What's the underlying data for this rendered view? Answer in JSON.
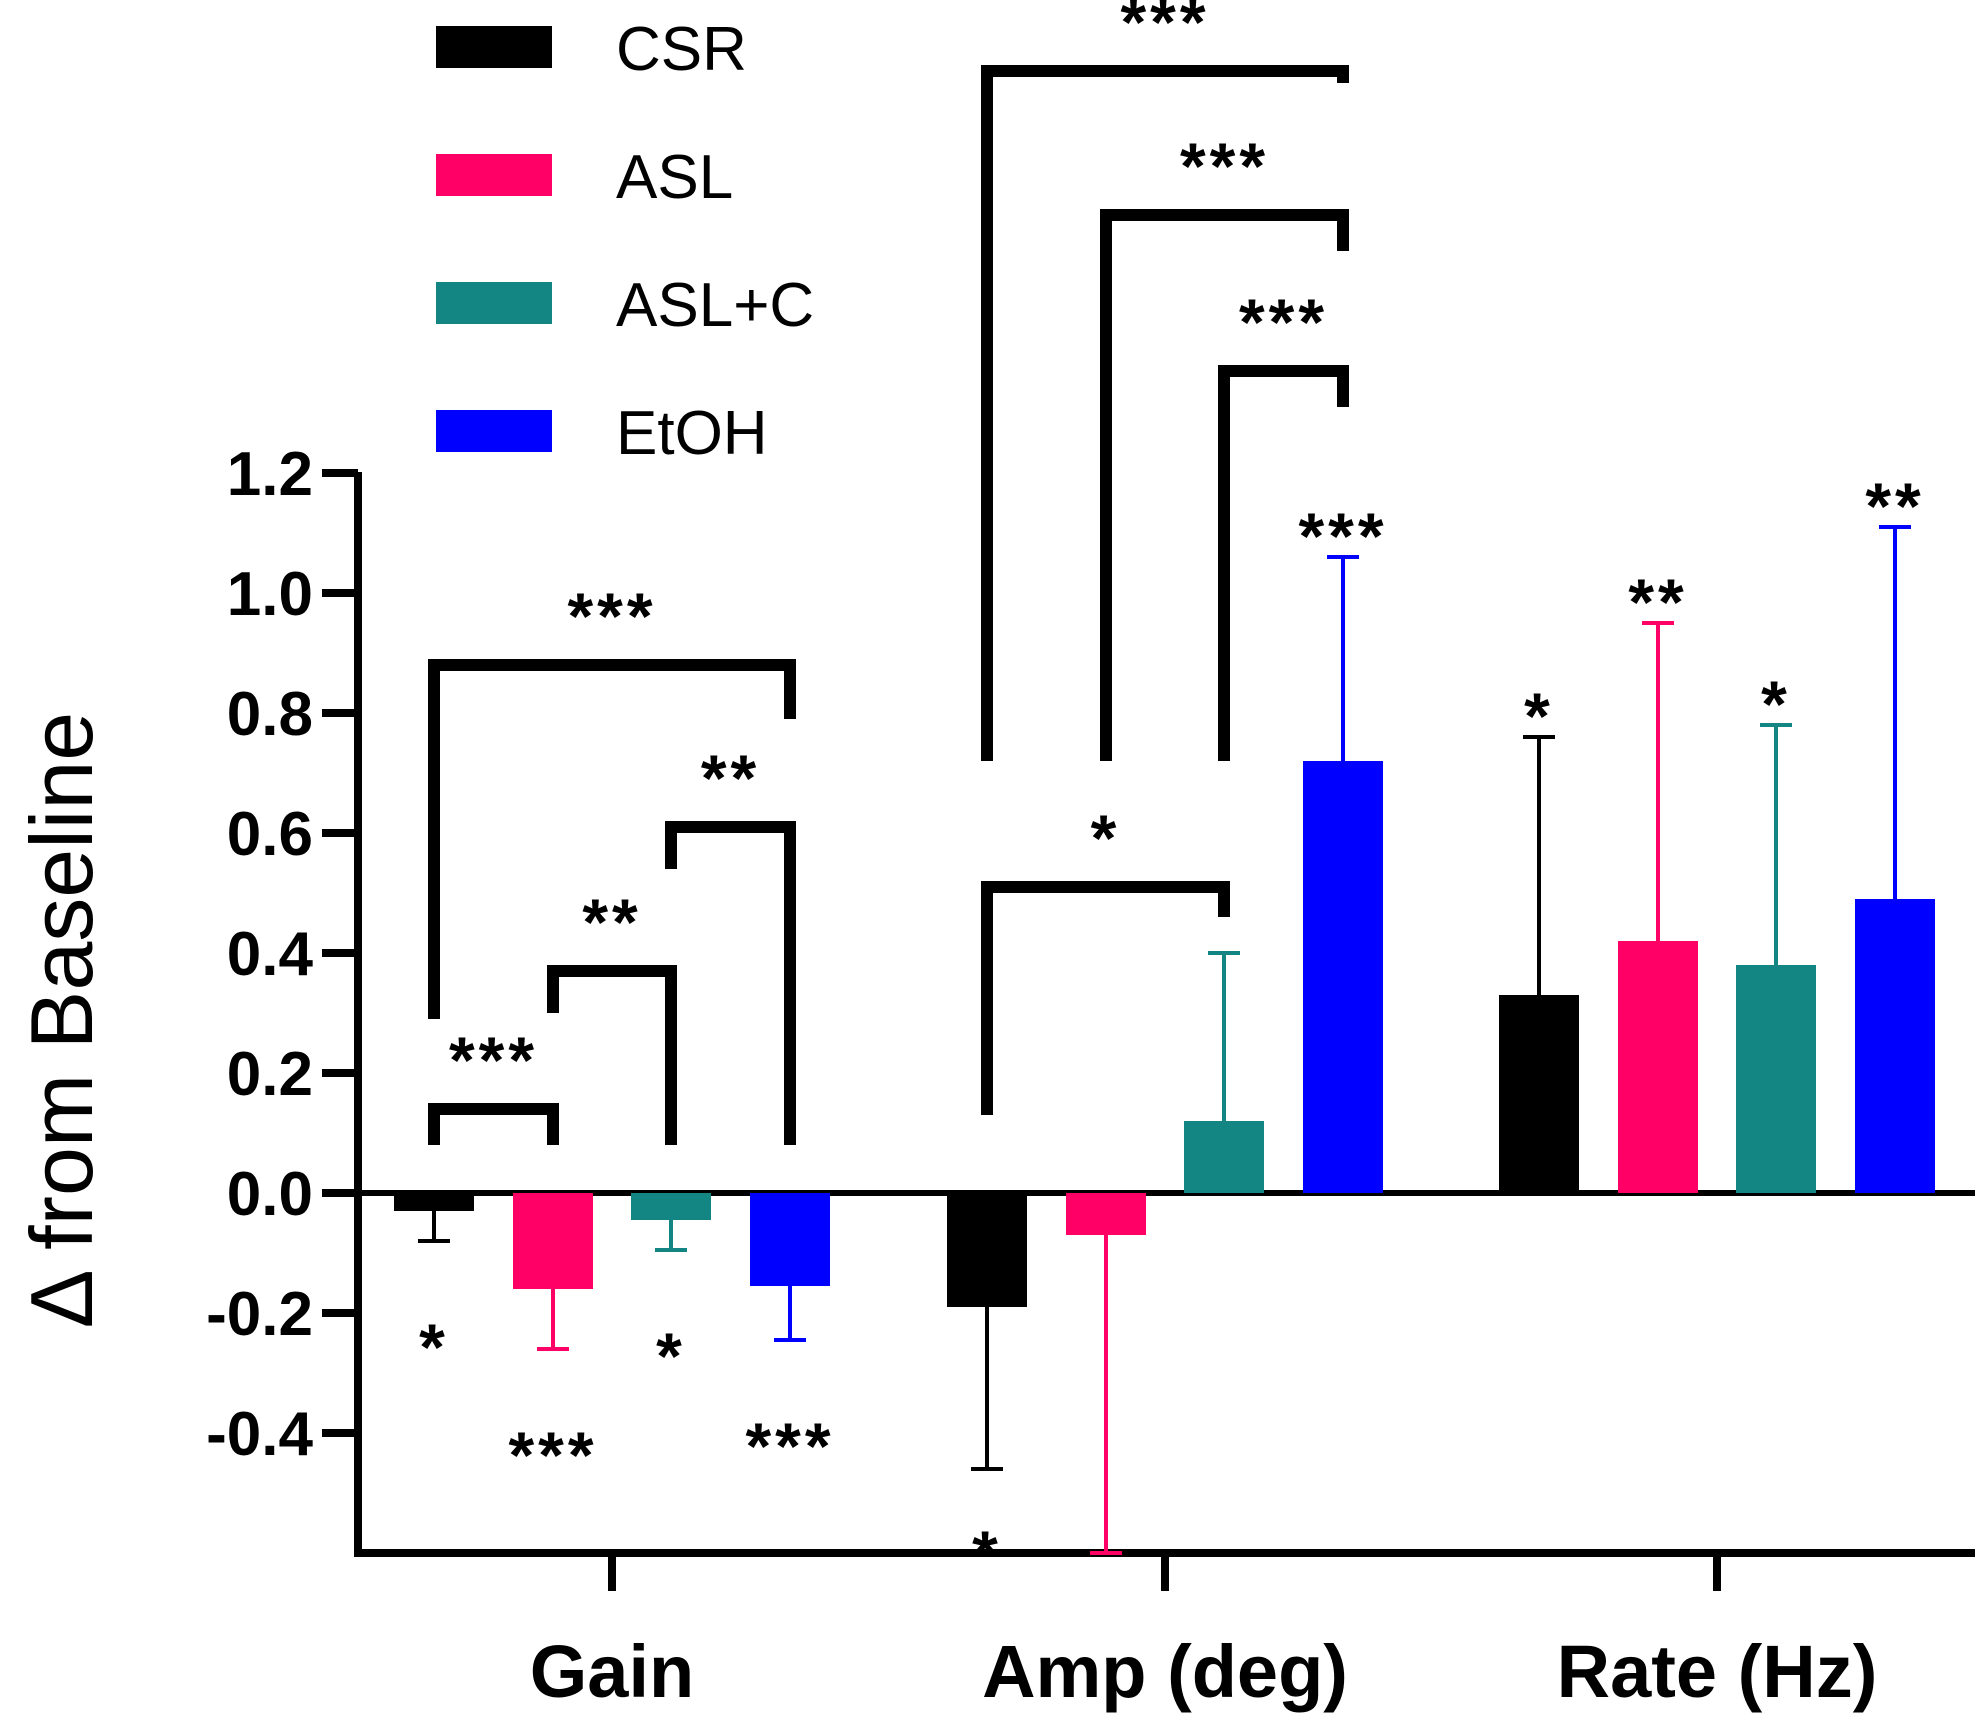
{
  "chart_data": {
    "type": "bar",
    "title": "",
    "ylabel": "Δ from Baseline",
    "xlabel": "",
    "ylim": [
      -0.6,
      1.2
    ],
    "yticks": [
      -0.4,
      -0.2,
      0.0,
      0.2,
      0.4,
      0.6,
      0.8,
      1.0,
      1.2
    ],
    "ytick_labels": [
      "-0.4",
      "-0.2",
      "0.0",
      "0.2",
      "0.4",
      "0.6",
      "0.8",
      "1.0",
      "1.2"
    ],
    "categories": [
      "Gain",
      "Amp (deg)",
      "Rate (Hz)"
    ],
    "legend_position": "top-left",
    "series": [
      {
        "name": "CSR",
        "color": "#000000",
        "values": [
          -0.03,
          -0.19,
          0.33
        ],
        "errors": [
          0.05,
          0.27,
          0.43
        ],
        "stars": [
          "*",
          "*",
          "*"
        ]
      },
      {
        "name": "ASL",
        "color": "#ff0066",
        "values": [
          -0.16,
          -0.07,
          0.42
        ],
        "errors": [
          0.1,
          0.54,
          0.53
        ],
        "stars": [
          "***",
          "",
          "**"
        ]
      },
      {
        "name": "ASL+C",
        "color": "#138582",
        "values": [
          -0.045,
          0.12,
          0.38
        ],
        "errors": [
          0.05,
          0.28,
          0.4
        ],
        "stars": [
          "*",
          "",
          "*"
        ]
      },
      {
        "name": "EtOH",
        "color": "#0000ff",
        "values": [
          -0.155,
          0.72,
          0.49
        ],
        "errors": [
          0.09,
          0.34,
          0.62
        ],
        "stars": [
          "***",
          "***",
          "**"
        ]
      }
    ],
    "comparisons": [
      {
        "category": "Gain",
        "from": "CSR",
        "to": "ASL",
        "label": "***",
        "y": 0.14,
        "left_base": 0.08,
        "right_base": 0.08
      },
      {
        "category": "Gain",
        "from": "ASL",
        "to": "ASL+C",
        "label": "**",
        "y": 0.37,
        "left_base": 0.3,
        "right_base": 0.08
      },
      {
        "category": "Gain",
        "from": "ASL+C",
        "to": "EtOH",
        "label": "**",
        "y": 0.61,
        "left_base": 0.54,
        "right_base": 0.08
      },
      {
        "category": "Gain",
        "from": "CSR",
        "to": "EtOH",
        "label": "***",
        "y": 0.88,
        "left_base": 0.29,
        "right_base": 0.79
      },
      {
        "category": "Amp (deg)",
        "from": "CSR",
        "to": "ASL+C",
        "label": "*",
        "y": 0.51,
        "left_base": 0.13,
        "right_base": 0.46
      },
      {
        "category": "Amp (deg)",
        "from": "ASL+C",
        "to": "EtOH",
        "label": "***",
        "y": 1.37,
        "left_base": 0.72,
        "right_base": 1.31
      },
      {
        "category": "Amp (deg)",
        "from": "ASL",
        "to": "EtOH",
        "label": "***",
        "y": 1.63,
        "left_base": 0.72,
        "right_base": 1.57
      },
      {
        "category": "Amp (deg)",
        "from": "CSR",
        "to": "EtOH",
        "label": "***",
        "y": 1.87,
        "left_base": 0.72,
        "right_base": 1.85
      }
    ]
  }
}
